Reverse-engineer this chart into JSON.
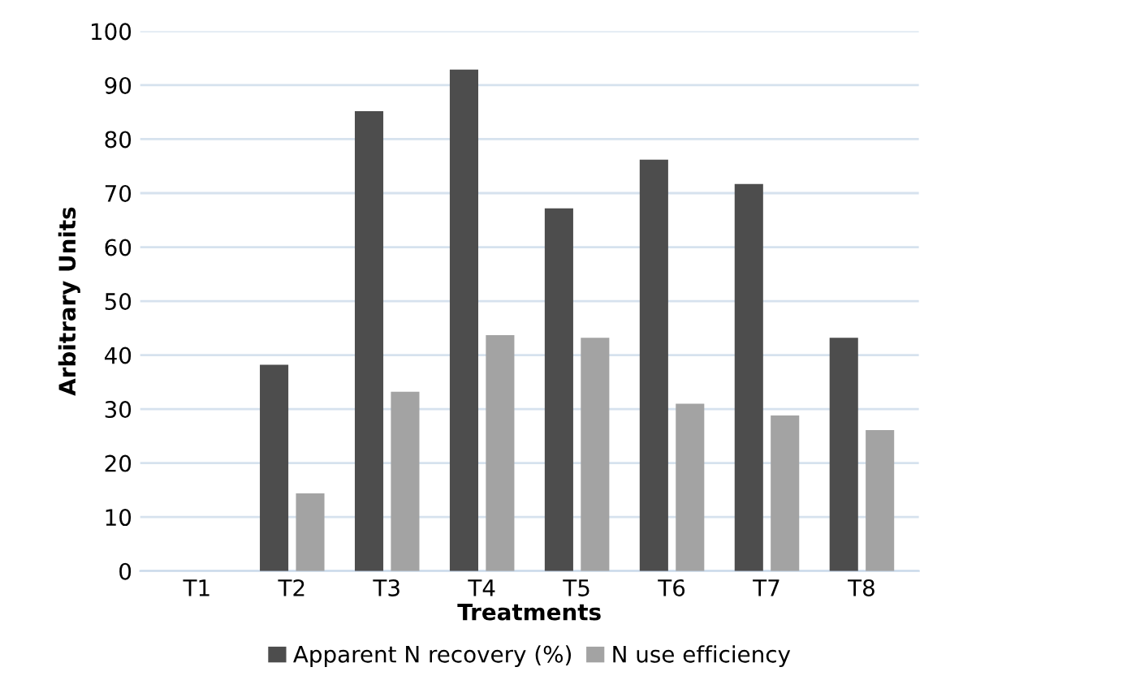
{
  "chart_data": {
    "type": "bar",
    "xlabel": "Treatments",
    "ylabel": "Arbitrary Units",
    "categories": [
      "T1",
      "T2",
      "T3",
      "T4",
      "T5",
      "T6",
      "T7",
      "T8"
    ],
    "series": [
      {
        "name": "Apparent N recovery (%)",
        "color": "#4d4d4d",
        "values": [
          0,
          38.2,
          85.2,
          92.9,
          67.2,
          76.2,
          71.7,
          43.2
        ]
      },
      {
        "name": "N use efficiency",
        "color": "#a3a3a3",
        "values": [
          0,
          14.4,
          33.2,
          43.7,
          43.2,
          31.0,
          28.8,
          26.1
        ]
      }
    ],
    "ylim": [
      0,
      100
    ],
    "yticks": [
      0,
      10,
      20,
      30,
      40,
      50,
      60,
      70,
      80,
      90,
      100
    ],
    "grid": "y",
    "legend": "bottom"
  }
}
